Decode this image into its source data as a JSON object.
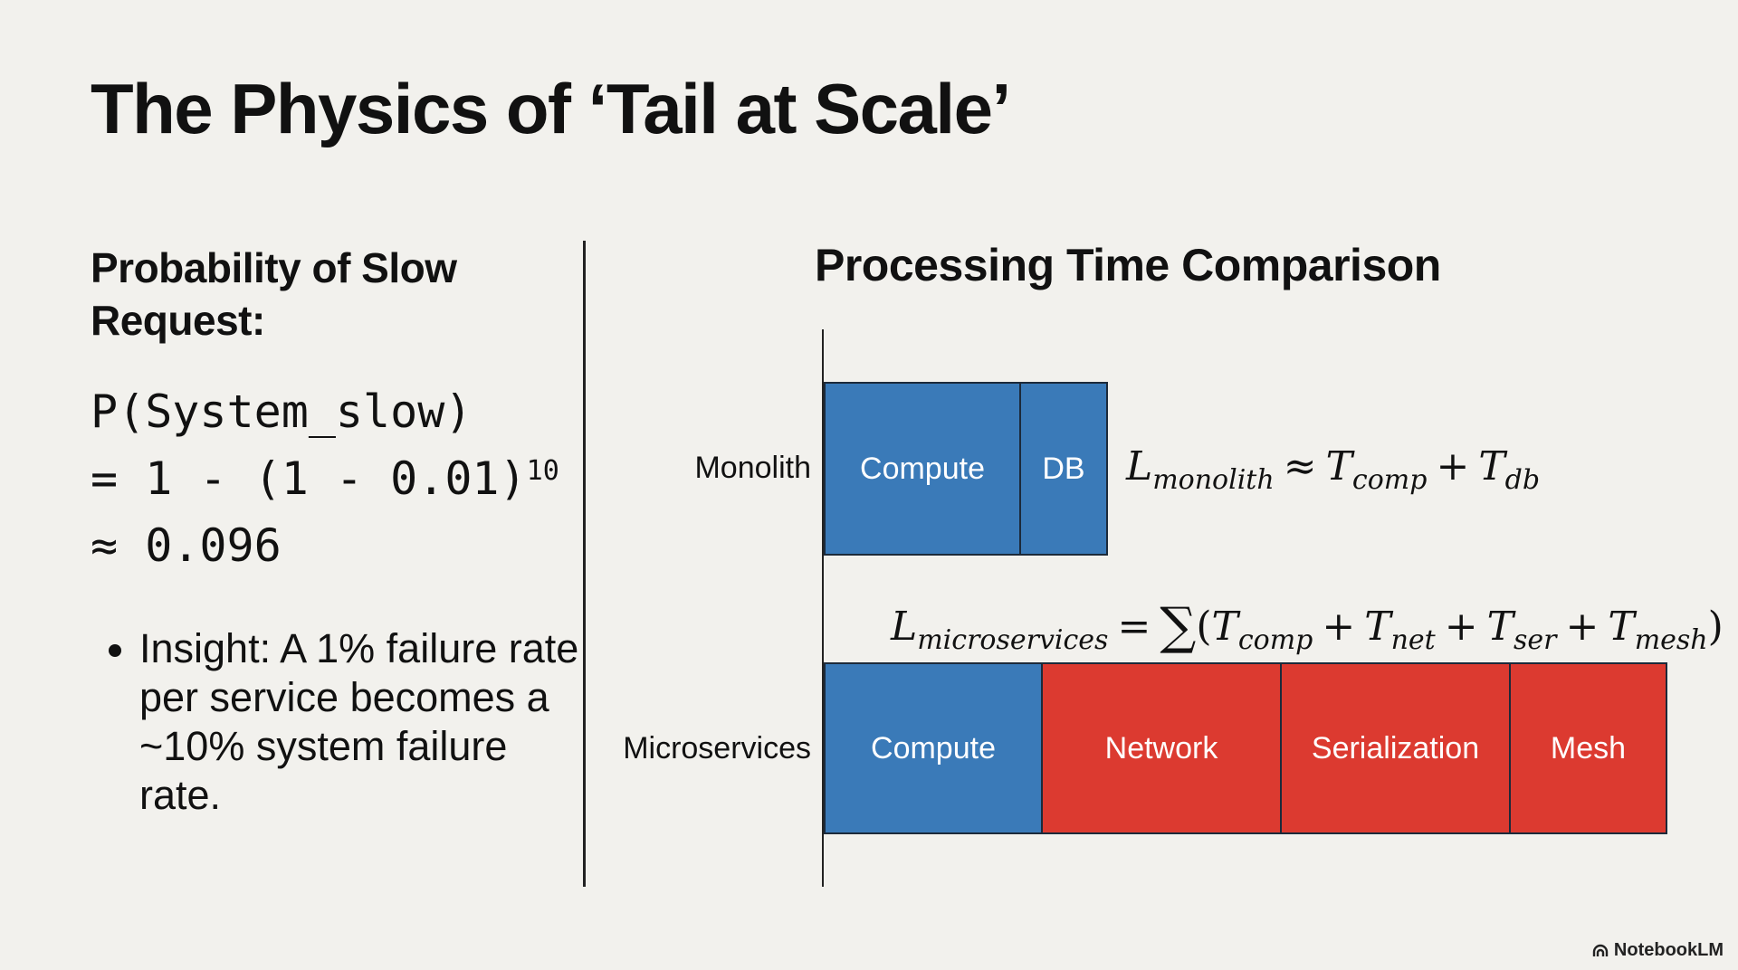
{
  "title": "The Physics of ‘Tail at Scale’",
  "left": {
    "heading": "Probability of Slow Request:",
    "formula_lines": [
      "P(System_slow)",
      "= 1 - (1 - 0.01)",
      "≈ 0.096"
    ],
    "formula_exponent": "10",
    "insight": "Insight: A 1% failure rate per service becomes a ~10% system failure rate."
  },
  "chart": {
    "title": "Processing Time Comparison",
    "rows": [
      {
        "label": "Monolith",
        "segments": [
          {
            "label": "Compute",
            "color": "#3a7ab8"
          },
          {
            "label": "DB",
            "color": "#3a7ab8"
          }
        ],
        "equation": {
          "lhs": "L",
          "lhs_sub": "monolith",
          "op": "≈",
          "terms": [
            {
              "sym": "T",
              "sub": "comp"
            },
            {
              "sym": "T",
              "sub": "db"
            }
          ]
        }
      },
      {
        "label": "Microservices",
        "segments": [
          {
            "label": "Compute",
            "color": "#3a7ab8"
          },
          {
            "label": "Network",
            "color": "#dc3a30"
          },
          {
            "label": "Serialization",
            "color": "#dc3a30"
          },
          {
            "label": "Mesh",
            "color": "#dc3a30"
          }
        ],
        "equation": {
          "lhs": "L",
          "lhs_sub": "microservices",
          "op": "=",
          "sum": "∑",
          "terms": [
            {
              "sym": "T",
              "sub": "comp"
            },
            {
              "sym": "T",
              "sub": "net"
            },
            {
              "sym": "T",
              "sub": "ser"
            },
            {
              "sym": "T",
              "sub": "mesh"
            }
          ]
        }
      }
    ]
  },
  "brand": "NotebookLM"
}
